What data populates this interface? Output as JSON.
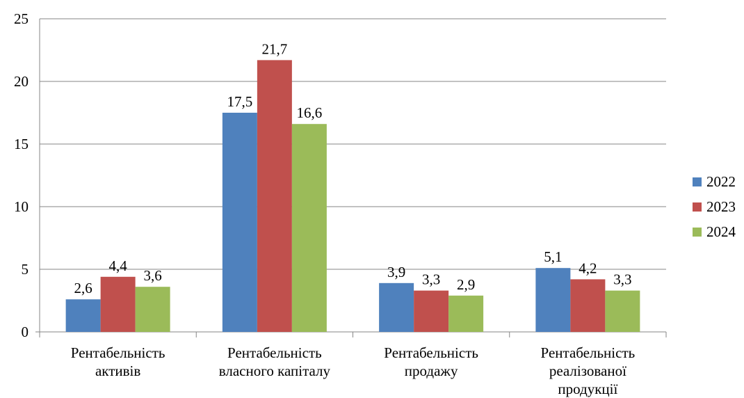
{
  "chart_data": {
    "type": "bar",
    "title": "",
    "xlabel": "",
    "ylabel": "",
    "ylim": [
      0,
      25
    ],
    "yticks": [
      0,
      5,
      10,
      15,
      20,
      25
    ],
    "grid": true,
    "legend_position": "right",
    "categories": [
      [
        "Рентабельність",
        "активів"
      ],
      [
        "Рентабельність",
        "власного капіталу"
      ],
      [
        "Рентабельність",
        "продажу"
      ],
      [
        "Рентабельність",
        "реалізованої",
        "продукції"
      ]
    ],
    "series": [
      {
        "name": "2022",
        "color": "#4F81BD",
        "values": [
          2.6,
          17.5,
          3.9,
          5.1
        ],
        "labels": [
          "2,6",
          "17,5",
          "3,9",
          "5,1"
        ]
      },
      {
        "name": "2023",
        "color": "#C0504D",
        "values": [
          4.4,
          21.7,
          3.3,
          4.2
        ],
        "labels": [
          "4,4",
          "21,7",
          "3,3",
          "4,2"
        ]
      },
      {
        "name": "2024",
        "color": "#9BBB59",
        "values": [
          3.6,
          16.6,
          2.9,
          3.3
        ],
        "labels": [
          "3,6",
          "16,6",
          "2,9",
          "3,3"
        ]
      }
    ]
  }
}
